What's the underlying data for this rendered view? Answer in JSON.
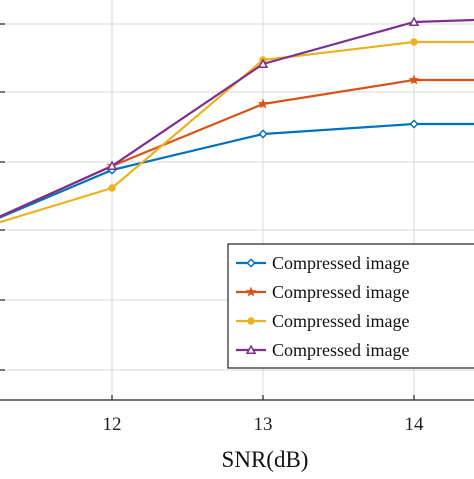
{
  "chart_data": {
    "type": "line",
    "title": "",
    "xlabel": "SNR(dB)",
    "ylabel": "",
    "xlim": [
      11.0,
      14.4
    ],
    "ylim": [
      0,
      1
    ],
    "x_ticks": [
      12,
      13,
      14
    ],
    "x_tick_labels": [
      "12",
      "13",
      "14"
    ],
    "y_ticks": [
      0.075,
      0.25,
      0.425,
      0.595,
      0.77,
      0.94
    ],
    "grid": true,
    "legend_position": "bottom-right",
    "x": [
      11.0,
      12.0,
      13.0,
      14.0,
      14.4
    ],
    "series": [
      {
        "name": "Compressed image",
        "color": "#0072BD",
        "marker": "diamond",
        "values": [
          0.415,
          0.575,
          0.665,
          0.69,
          0.69
        ]
      },
      {
        "name": "Compressed image",
        "color": "#D95319",
        "marker": "star",
        "values": [
          0.415,
          0.585,
          0.74,
          0.8,
          0.8
        ]
      },
      {
        "name": "Compressed image",
        "color": "#EDB120",
        "marker": "circle",
        "values": [
          0.415,
          0.53,
          0.85,
          0.895,
          0.895
        ]
      },
      {
        "name": "Compressed image",
        "color": "#7E2F8E",
        "marker": "triangle",
        "values": [
          0.415,
          0.585,
          0.84,
          0.945,
          0.95
        ]
      }
    ]
  }
}
